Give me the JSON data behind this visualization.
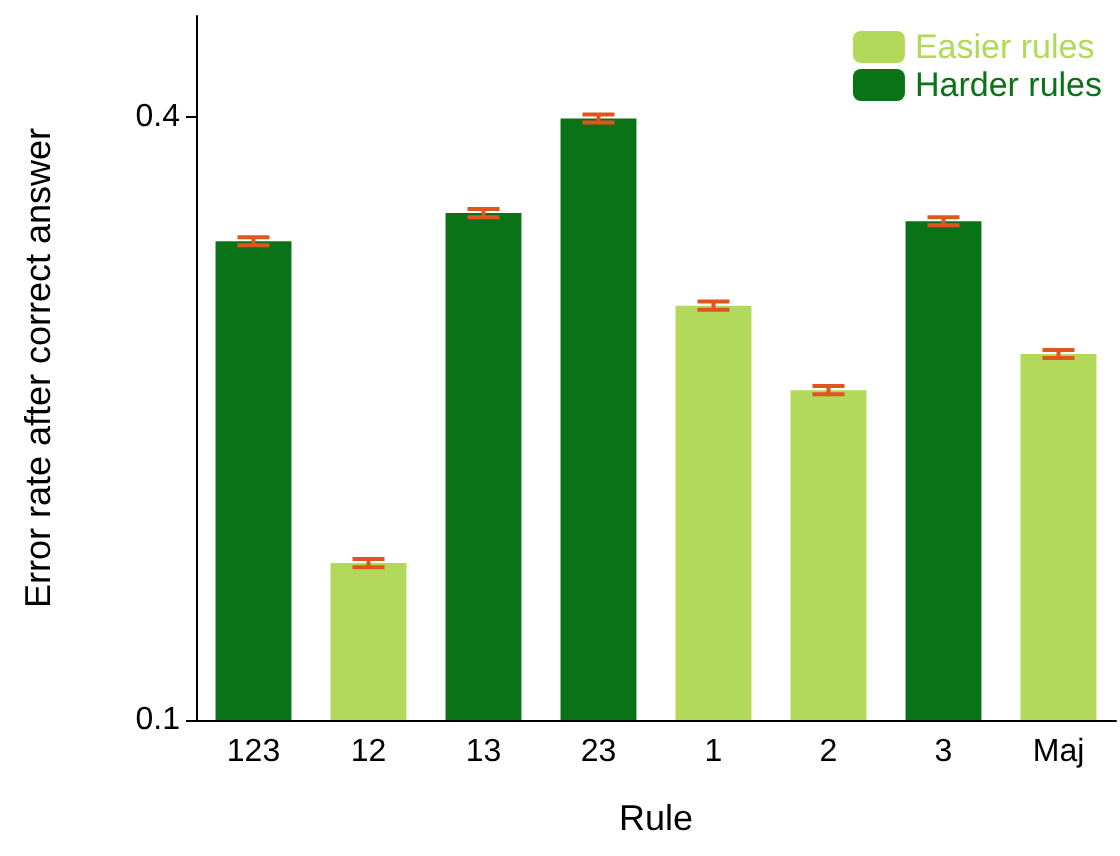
{
  "chart_data": {
    "type": "bar",
    "xlabel": "Rule",
    "ylabel": "Error rate after correct answer",
    "categories": [
      "123",
      "12",
      "13",
      "23",
      "1",
      "2",
      "3",
      "Maj"
    ],
    "series": [
      {
        "name": "Easier rules",
        "color": "#b2d95a",
        "values": [
          null,
          0.178,
          null,
          null,
          0.306,
          0.264,
          null,
          0.282
        ],
        "errors": [
          null,
          0.002,
          null,
          null,
          0.002,
          0.002,
          null,
          0.002
        ]
      },
      {
        "name": "Harder rules",
        "color": "#0a7318",
        "values": [
          0.338,
          null,
          0.352,
          0.399,
          null,
          null,
          0.348,
          null
        ],
        "errors": [
          0.002,
          null,
          0.002,
          0.002,
          null,
          null,
          0.002,
          null
        ]
      }
    ],
    "ylim": [
      0.1,
      0.45
    ],
    "yticks": [
      0.1,
      0.4
    ],
    "grid": false,
    "legend": "top right"
  }
}
